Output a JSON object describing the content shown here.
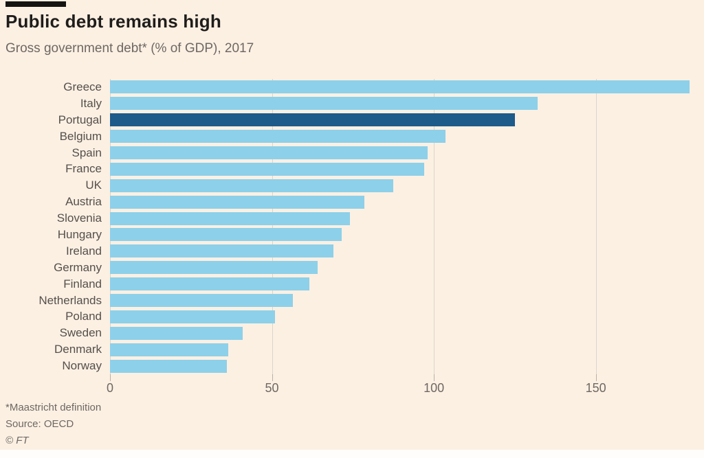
{
  "header": {
    "title": "Public debt remains high",
    "subtitle": "Gross government debt* (% of GDP), 2017"
  },
  "footer": {
    "footnote": "*Maastricht definition",
    "source": "Source: OECD",
    "copyright": "© FT"
  },
  "colors": {
    "background": "#fcf0e3",
    "bar": "#8dd0e9",
    "bar_highlight": "#1e5a8a",
    "gridline": "#dcd3c9",
    "title_text": "#1f1d1b",
    "muted_text": "#6e6862",
    "top_rule": "#161412"
  },
  "chart_data": {
    "type": "bar",
    "orientation": "horizontal",
    "title": "Public debt remains high",
    "subtitle": "Gross government debt* (% of GDP), 2017",
    "categories": [
      "Greece",
      "Italy",
      "Portugal",
      "Belgium",
      "Spain",
      "France",
      "UK",
      "Austria",
      "Slovenia",
      "Hungary",
      "Ireland",
      "Germany",
      "Finland",
      "Netherlands",
      "Poland",
      "Sweden",
      "Denmark",
      "Norway"
    ],
    "values": [
      179,
      132,
      125,
      103.5,
      98,
      97,
      87.5,
      78.5,
      74,
      71.5,
      69,
      64,
      61.5,
      56.5,
      51,
      41,
      36.5,
      36
    ],
    "highlight_category": "Portugal",
    "highlight_index": 2,
    "xticks": [
      0,
      50,
      100,
      150
    ],
    "xlim": [
      0,
      180
    ],
    "grid": "vertical-gridlines",
    "legend": "none"
  }
}
